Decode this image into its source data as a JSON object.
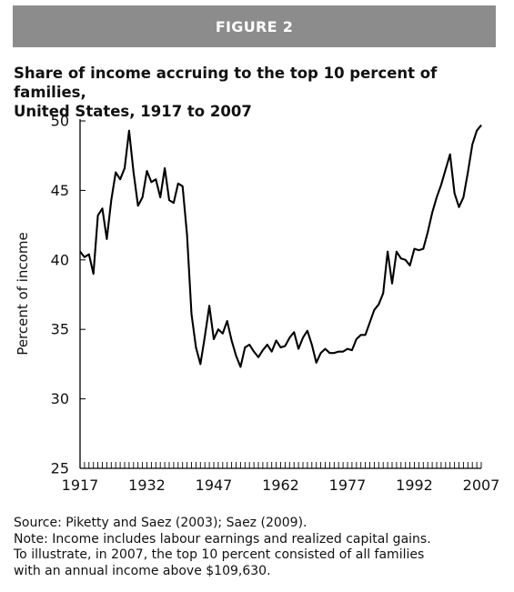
{
  "banner": "FIGURE 2",
  "title_lines": [
    "Share of income accruing to the top 10 percent of families,",
    "United States, 1917 to 2007"
  ],
  "notes": [
    "Source: Piketty and Saez (2003); Saez (2009).",
    "Note: Income includes labour earnings and realized capital gains.",
    "To illustrate, in 2007, the top 10 percent consisted of all families",
    "with an annual income above $109,630."
  ],
  "colors": {
    "banner": "#8c8c8c",
    "line": "#000000"
  },
  "chart_data": {
    "type": "line",
    "title": "Share of income accruing to the top 10 percent of families, United States, 1917 to 2007",
    "xlabel": "",
    "ylabel": "Percent of income",
    "xlim": [
      1917,
      2007
    ],
    "ylim": [
      25,
      50
    ],
    "x_ticks": [
      1917,
      1932,
      1947,
      1962,
      1977,
      1992,
      2007
    ],
    "y_ticks": [
      25,
      30,
      35,
      40,
      45,
      50
    ],
    "grid": false,
    "legend": "none",
    "series": [
      {
        "x": [
          1917,
          1918,
          1919,
          1920,
          1921,
          1922,
          1923,
          1924,
          1925,
          1926,
          1927,
          1928,
          1929,
          1930,
          1931,
          1932,
          1933,
          1934,
          1935,
          1936,
          1937,
          1938,
          1939,
          1940,
          1941,
          1942,
          1943,
          1944,
          1945,
          1946,
          1947,
          1948,
          1949,
          1950,
          1951,
          1952,
          1953,
          1954,
          1955,
          1956,
          1957,
          1958,
          1959,
          1960,
          1961,
          1962,
          1963,
          1964,
          1965,
          1966,
          1967,
          1968,
          1969,
          1970,
          1971,
          1972,
          1973,
          1974,
          1975,
          1976,
          1977,
          1978,
          1979,
          1980,
          1981,
          1982,
          1983,
          1984,
          1985,
          1986,
          1987,
          1988,
          1989,
          1990,
          1991,
          1992,
          1993,
          1994,
          1995,
          1996,
          1997,
          1998,
          1999,
          2000,
          2001,
          2002,
          2003,
          2004,
          2005,
          2006,
          2007
        ],
        "y": [
          40.6,
          40.2,
          40.4,
          39.0,
          43.2,
          43.7,
          41.5,
          44.3,
          46.3,
          45.8,
          46.6,
          49.3,
          46.3,
          43.9,
          44.5,
          46.4,
          45.6,
          45.8,
          44.5,
          46.6,
          44.3,
          44.1,
          45.5,
          45.3,
          41.8,
          36.1,
          33.7,
          32.5,
          34.5,
          36.7,
          34.3,
          35.0,
          34.7,
          35.6,
          34.2,
          33.1,
          32.3,
          33.7,
          33.9,
          33.4,
          33.0,
          33.5,
          33.9,
          33.4,
          34.2,
          33.7,
          33.8,
          34.4,
          34.8,
          33.6,
          34.4,
          34.9,
          33.9,
          32.6,
          33.3,
          33.6,
          33.3,
          33.3,
          33.4,
          33.4,
          33.6,
          33.5,
          34.3,
          34.6,
          34.6,
          35.5,
          36.4,
          36.8,
          37.6,
          40.6,
          38.3,
          40.6,
          40.1,
          40.0,
          39.6,
          40.8,
          40.7,
          40.8,
          42.0,
          43.4,
          44.5,
          45.4,
          46.5,
          47.6,
          44.8,
          43.8,
          44.5,
          46.3,
          48.3,
          49.3,
          49.7
        ]
      }
    ]
  }
}
